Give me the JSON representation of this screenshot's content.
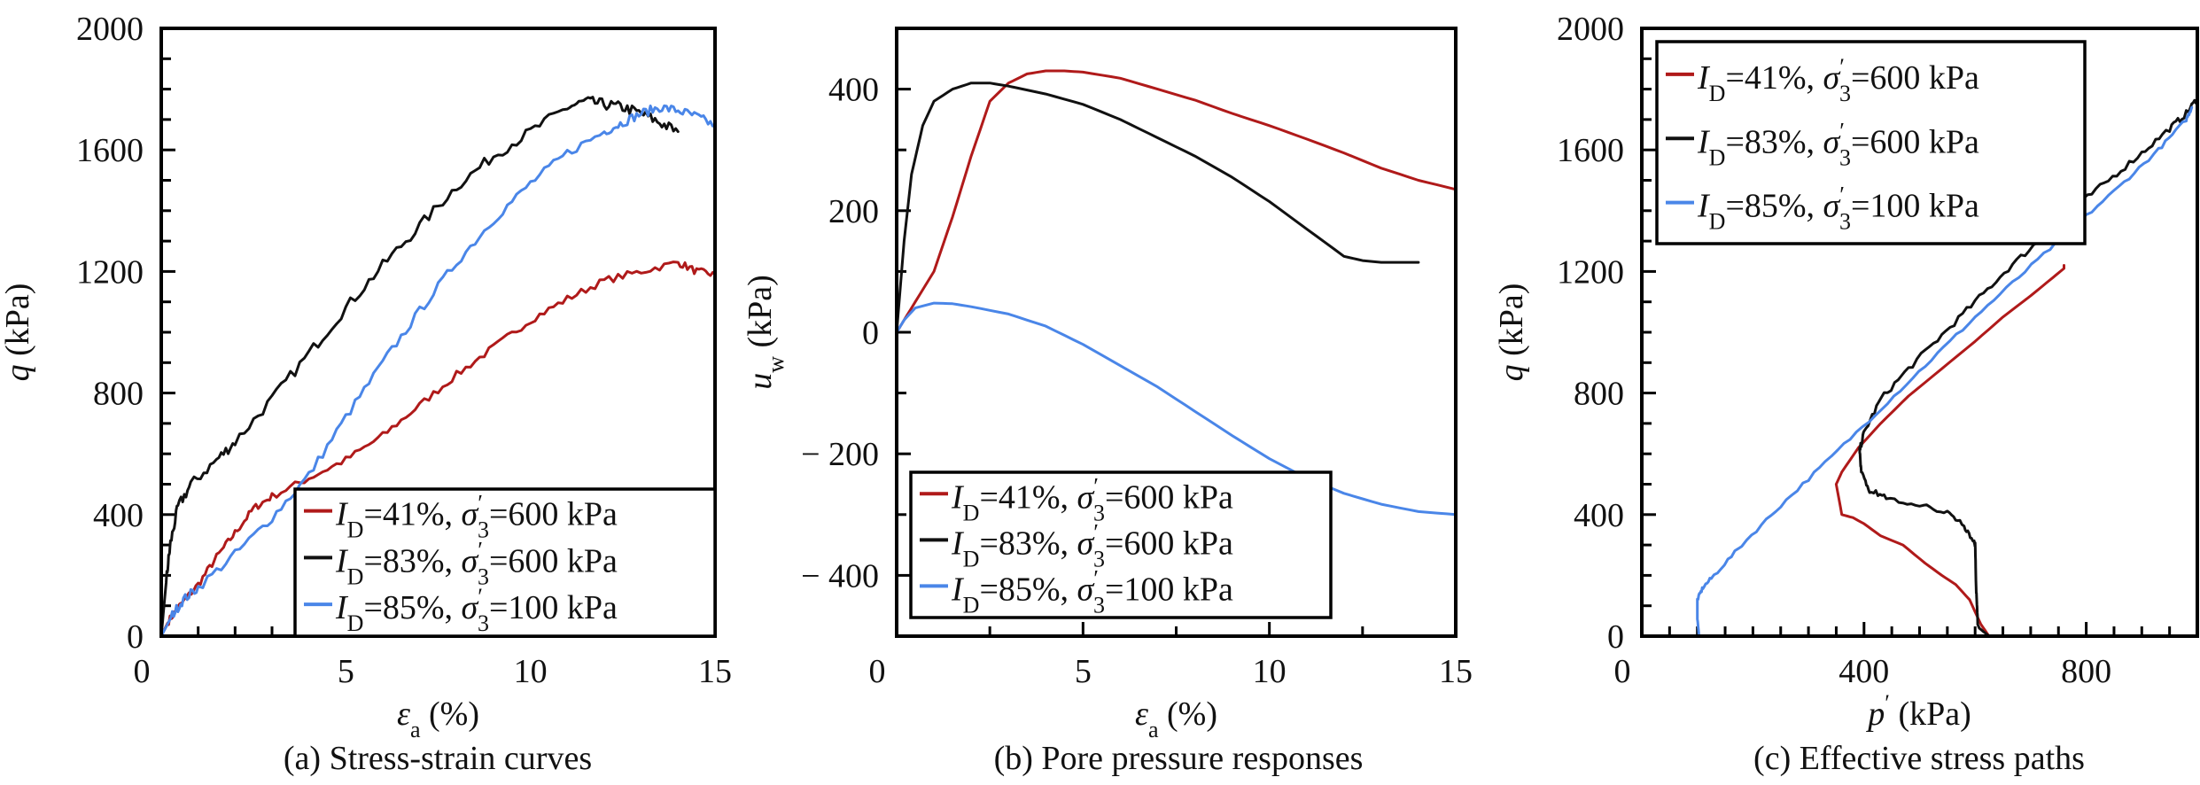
{
  "colors": {
    "red": "#b01a1a",
    "black": "#111111",
    "blue": "#4a86e8"
  },
  "legend": [
    {
      "id_label": "I",
      "id_sub": "D",
      "id_value": "=41%, ",
      "sigma": "σ",
      "sigma_sub": "3",
      "prime": "′",
      "sigma_value": "=600 kPa",
      "color_key": "red"
    },
    {
      "id_label": "I",
      "id_sub": "D",
      "id_value": "=83%, ",
      "sigma": "σ",
      "sigma_sub": "3",
      "prime": "′",
      "sigma_value": "=600 kPa",
      "color_key": "black"
    },
    {
      "id_label": "I",
      "id_sub": "D",
      "id_value": "=85%, ",
      "sigma": "σ",
      "sigma_sub": "3",
      "prime": "′",
      "sigma_value": "=100 kPa",
      "color_key": "blue"
    }
  ],
  "chart_data": [
    {
      "type": "line",
      "title": "(a) Stress-strain curves",
      "xlabel": {
        "symbol": "ε",
        "sub": "a",
        "unit": " (%)"
      },
      "ylabel": {
        "symbol": "q",
        "sub": "",
        "unit": " (kPa)"
      },
      "xlim": [
        0,
        15
      ],
      "ylim": [
        0,
        2000
      ],
      "xticks": [
        0,
        5,
        10,
        15
      ],
      "xticks_minor_step": 1,
      "yticks": [
        0,
        400,
        800,
        1200,
        1600,
        2000
      ],
      "yticks_minor_step": 100,
      "legend_placement": "bottom-right",
      "series": [
        {
          "name": "I_D=41%, σ'3=600 kPa",
          "color_key": "red",
          "noise": 12,
          "x": [
            0,
            0.2,
            0.5,
            1.0,
            1.5,
            2.0,
            2.5,
            3.0,
            4.0,
            5.0,
            6.0,
            7.0,
            8.0,
            9.0,
            10.0,
            11.0,
            12.0,
            13.0,
            14.0,
            14.5,
            15.0
          ],
          "y": [
            0,
            50,
            100,
            170,
            260,
            340,
            420,
            460,
            520,
            580,
            660,
            760,
            860,
            950,
            1040,
            1110,
            1170,
            1200,
            1230,
            1200,
            1190
          ]
        },
        {
          "name": "I_D=83%, σ'3=600 kPa",
          "color_key": "black",
          "noise": 18,
          "x": [
            0,
            0.15,
            0.25,
            0.45,
            0.8,
            1.5,
            2.0,
            3.0,
            4.0,
            5.0,
            6.0,
            7.0,
            8.0,
            9.0,
            10.0,
            11.0,
            11.5,
            12.0,
            12.5,
            13.0,
            13.5,
            14.0
          ],
          "y": [
            0,
            200,
            306,
            425,
            498,
            580,
            640,
            780,
            930,
            1080,
            1220,
            1350,
            1480,
            1580,
            1660,
            1740,
            1760,
            1750,
            1740,
            1720,
            1690,
            1660
          ]
        },
        {
          "name": "I_D=85%, σ'3=100 kPa",
          "color_key": "blue",
          "noise": 15,
          "x": [
            0,
            0.3,
            0.6,
            1.0,
            2.0,
            3.0,
            4.0,
            5.0,
            6.0,
            7.0,
            8.0,
            9.0,
            10.0,
            11.0,
            12.0,
            12.5,
            13.0,
            13.5,
            14.0,
            14.5,
            15.0
          ],
          "y": [
            0,
            70,
            120,
            160,
            270,
            390,
            530,
            720,
            900,
            1070,
            1230,
            1370,
            1490,
            1590,
            1660,
            1690,
            1720,
            1740,
            1730,
            1710,
            1680
          ]
        }
      ]
    },
    {
      "type": "line",
      "title": "(b) Pore pressure responses",
      "xlabel": {
        "symbol": "ε",
        "sub": "a",
        "unit": " (%)"
      },
      "ylabel": {
        "symbol": "u",
        "sub": "w",
        "unit": " (kPa)"
      },
      "xlim": [
        0,
        15
      ],
      "ylim": [
        -500,
        500
      ],
      "xticks": [
        0,
        5,
        10,
        15
      ],
      "xticks_minor_step": 2.5,
      "yticks": [
        -400,
        -200,
        0,
        200,
        400
      ],
      "yticks_minor_step": 100,
      "legend_placement": "bottom-left",
      "series": [
        {
          "name": "I_D=41%, σ'3=600 kPa",
          "color_key": "red",
          "noise": 0,
          "x": [
            0,
            0.5,
            1.0,
            1.5,
            2.0,
            2.5,
            3.0,
            3.5,
            4.0,
            4.5,
            5.0,
            6.0,
            7.0,
            8.0,
            9.0,
            10.0,
            11.0,
            12.0,
            13.0,
            14.0,
            15.0
          ],
          "y": [
            0,
            50,
            100,
            190,
            290,
            380,
            410,
            425,
            430,
            430,
            428,
            418,
            400,
            382,
            360,
            340,
            318,
            295,
            270,
            250,
            235
          ]
        },
        {
          "name": "I_D=83%, σ'3=600 kPa",
          "color_key": "black",
          "noise": 0,
          "x": [
            0,
            0.2,
            0.4,
            0.7,
            1.0,
            1.5,
            2.0,
            2.5,
            3.0,
            4.0,
            5.0,
            6.0,
            7.0,
            8.0,
            9.0,
            10.0,
            11.0,
            12.0,
            12.5,
            13.0,
            13.5,
            14.0
          ],
          "y": [
            0,
            150,
            260,
            340,
            380,
            400,
            410,
            410,
            405,
            392,
            375,
            350,
            320,
            290,
            255,
            215,
            170,
            125,
            118,
            115,
            115,
            115
          ]
        },
        {
          "name": "I_D=85%, σ'3=100 kPa",
          "color_key": "blue",
          "noise": 0,
          "x": [
            0,
            0.2,
            0.5,
            1.0,
            1.5,
            2.0,
            3.0,
            4.0,
            5.0,
            6.0,
            7.0,
            8.0,
            9.0,
            10.0,
            11.0,
            12.0,
            13.0,
            14.0,
            15.0
          ],
          "y": [
            0,
            20,
            40,
            48,
            47,
            42,
            30,
            10,
            -20,
            -55,
            -90,
            -130,
            -170,
            -208,
            -240,
            -265,
            -283,
            -295,
            -300
          ]
        }
      ]
    },
    {
      "type": "line",
      "title": "(c) Effective stress paths",
      "xlabel": {
        "symbol": "p",
        "sub": "",
        "prime": "′",
        "unit": " (kPa)"
      },
      "ylabel": {
        "symbol": "q",
        "sub": "",
        "unit": " (kPa)"
      },
      "xlim": [
        0,
        1000
      ],
      "ylim": [
        0,
        2000
      ],
      "xticks": [
        0,
        400,
        800
      ],
      "xticks_minor_step": 50,
      "yticks": [
        0,
        400,
        800,
        1200,
        1600,
        2000
      ],
      "yticks_minor_step": 100,
      "legend_placement": "top-left",
      "series": [
        {
          "name": "I_D=41%, σ'3=600 kPa",
          "color_key": "red",
          "noise": 0,
          "x": [
            625,
            610,
            590,
            565,
            540,
            510,
            470,
            430,
            400,
            380,
            360,
            350,
            360,
            390,
            430,
            480,
            540,
            600,
            650,
            700,
            740,
            760,
            760
          ],
          "y": [
            0,
            40,
            120,
            170,
            200,
            240,
            300,
            330,
            370,
            390,
            400,
            500,
            540,
            620,
            700,
            790,
            880,
            970,
            1050,
            1120,
            1180,
            1210,
            1220
          ]
        },
        {
          "name": "I_D=83%, σ'3=600 kPa",
          "color_key": "black",
          "noise": 10,
          "x": [
            625,
            605,
            602,
            600,
            598,
            580,
            550,
            500,
            440,
            410,
            395,
            392,
            400,
            430,
            480,
            540,
            600,
            660,
            720,
            780,
            840,
            900,
            950,
            980,
            1000
          ],
          "y": [
            0,
            30,
            150,
            300,
            310,
            360,
            410,
            430,
            460,
            480,
            540,
            610,
            670,
            780,
            880,
            990,
            1100,
            1210,
            1310,
            1410,
            1500,
            1590,
            1670,
            1720,
            1770
          ]
        },
        {
          "name": "I_D=85%, σ'3=100 kPa",
          "color_key": "blue",
          "noise": 6,
          "x": [
            103,
            100,
            100,
            110,
            130,
            180,
            250,
            330,
            420,
            510,
            600,
            690,
            780,
            860,
            930,
            980,
            990
          ],
          "y": [
            0,
            60,
            120,
            160,
            200,
            300,
            430,
            570,
            730,
            890,
            1050,
            1200,
            1350,
            1480,
            1600,
            1700,
            1740
          ]
        }
      ]
    }
  ]
}
